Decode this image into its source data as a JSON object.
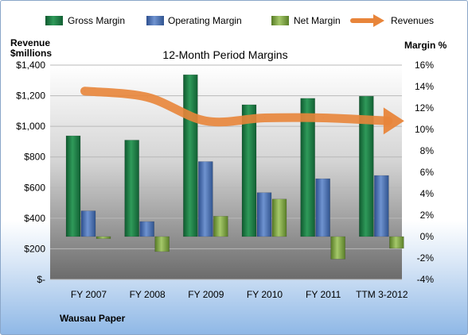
{
  "company": "Wausau Paper",
  "chart_data": {
    "type": "bar",
    "title": "12-Month Period Margins",
    "categories": [
      "FY 2007",
      "FY 2008",
      "FY 2009",
      "FY 2010",
      "FY 2011",
      "TTM 3-2012"
    ],
    "left_axis": {
      "label_line1": "Revenue",
      "label_line2": "$millions",
      "ylim": [
        0,
        1400
      ],
      "ticks": [
        0,
        200,
        400,
        600,
        800,
        1000,
        1200,
        1400
      ],
      "tick_labels": [
        "$-",
        "$200",
        "$400",
        "$600",
        "$800",
        "$1,000",
        "$1,200",
        "$1,400"
      ]
    },
    "right_axis": {
      "label": "Margin %",
      "ylim": [
        -4,
        16
      ],
      "ticks": [
        -4,
        -2,
        0,
        2,
        4,
        6,
        8,
        10,
        12,
        14,
        16
      ],
      "tick_labels": [
        "-4%",
        "-2%",
        "0%",
        "2%",
        "4%",
        "6%",
        "8%",
        "10%",
        "12%",
        "14%",
        "16%"
      ]
    },
    "series": [
      {
        "name": "Gross Margin",
        "kind": "bar",
        "axis": "right",
        "color": "#1f7a45",
        "values": [
          9.4,
          9.0,
          15.1,
          12.3,
          12.9,
          13.1
        ]
      },
      {
        "name": "Operating Margin",
        "kind": "bar",
        "axis": "right",
        "color": "#4a6fb0",
        "values": [
          2.4,
          1.4,
          7.0,
          4.1,
          5.4,
          5.7
        ]
      },
      {
        "name": "Net Margin",
        "kind": "bar",
        "axis": "right",
        "color": "#7aa040",
        "values": [
          -0.2,
          -1.4,
          1.9,
          3.5,
          -2.1,
          -1.1
        ]
      },
      {
        "name": "Revenues",
        "kind": "line",
        "axis": "left",
        "color": "#e8853a",
        "values": [
          1230,
          1190,
          1035,
          1055,
          1055,
          1035
        ]
      }
    ],
    "legend_position": "top",
    "grid": true
  },
  "colors": {
    "plot_background_top": "#ffffff",
    "plot_background_bottom": "#6f6f6f",
    "gridline": "#b8b8b8"
  }
}
